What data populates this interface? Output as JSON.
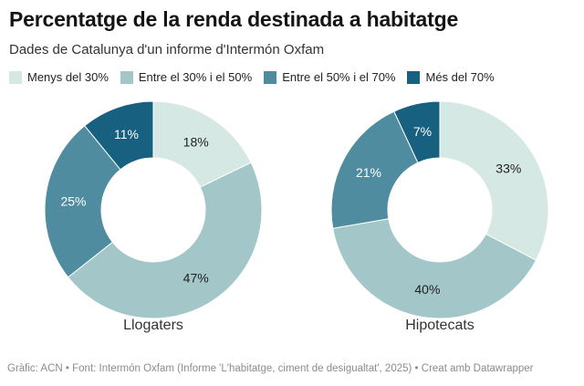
{
  "header": {
    "title": "Percentatge de la renda destinada a habitatge",
    "subtitle": "Dades de Catalunya d'un informe d'Intermón Oxfam"
  },
  "palette": [
    "#d5e8e4",
    "#a3c6c8",
    "#508ca0",
    "#17607f"
  ],
  "legend": {
    "position": "top",
    "items": [
      {
        "label": "Menys del 30%",
        "color": "#d5e8e4"
      },
      {
        "label": "Entre el 30% i el 50%",
        "color": "#a3c6c8"
      },
      {
        "label": "Entre el 50% i el 70%",
        "color": "#508ca0"
      },
      {
        "label": "Més del 70%",
        "color": "#17607f"
      }
    ]
  },
  "chart_data": [
    {
      "type": "pie",
      "subtype": "donut",
      "title": "Llogaters",
      "categories": [
        "Menys del 30%",
        "Entre el 30% i el 50%",
        "Entre el 50% i el 70%",
        "Més del 70%"
      ],
      "values": [
        18,
        47,
        25,
        11
      ],
      "labels": [
        "18%",
        "47%",
        "25%",
        "11%"
      ],
      "colors": [
        "#d5e8e4",
        "#a3c6c8",
        "#508ca0",
        "#17607f"
      ],
      "start_angle_deg": 0,
      "clockwise": true,
      "inner_radius_ratio": 0.48
    },
    {
      "type": "pie",
      "subtype": "donut",
      "title": "Hipotecats",
      "categories": [
        "Menys del 30%",
        "Entre el 30% i el 50%",
        "Entre el 50% i el 70%",
        "Més del 70%"
      ],
      "values": [
        33,
        40,
        21,
        7
      ],
      "labels": [
        "33%",
        "40%",
        "21%",
        "7%"
      ],
      "colors": [
        "#d5e8e4",
        "#a3c6c8",
        "#508ca0",
        "#17607f"
      ],
      "start_angle_deg": 0,
      "clockwise": true,
      "inner_radius_ratio": 0.48
    }
  ],
  "footer": {
    "text": "Gràfic: ACN • Font: Intermón Oxfam (Informe 'L'habitatge, ciment de desigualtat', 2025) • Creat amb Datawrapper"
  }
}
